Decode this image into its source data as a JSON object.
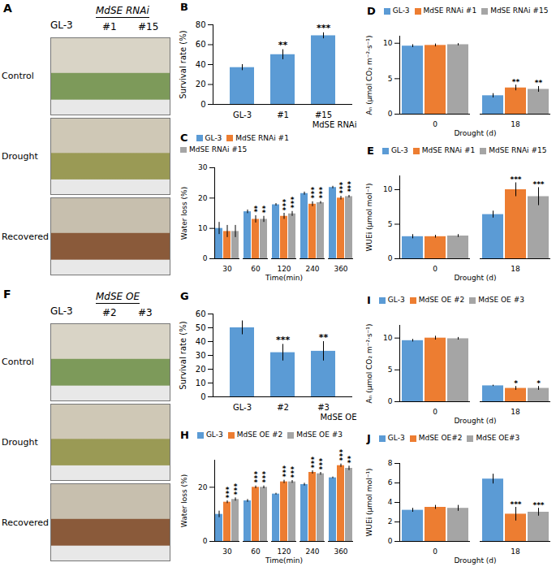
{
  "photos": [
    {
      "panel": "A",
      "columns": [
        "GL-3",
        "MdSE RNAi"
      ],
      "lines": [
        "#1",
        "#15"
      ],
      "rows": [
        "Control",
        "Drought",
        "Recovered"
      ]
    },
    {
      "panel": "F",
      "columns": [
        "GL-3",
        "MdSE OE"
      ],
      "lines": [
        "#2",
        "#3"
      ],
      "rows": [
        "Control",
        "Drought",
        "Recovered"
      ]
    }
  ],
  "chart_data": [
    {
      "panel": "B",
      "type": "bar",
      "y_label": "Survival rate (%)",
      "group_label": "MdSE RNAi",
      "categories": [
        "GL-3",
        "#1",
        "#15"
      ],
      "values": [
        37,
        50,
        69
      ],
      "errors": [
        3,
        5,
        3
      ],
      "significance": [
        null,
        "**",
        "***"
      ],
      "color": "#5b9bd5",
      "ylim": [
        0,
        80
      ],
      "yticks": [
        0,
        20,
        40,
        60,
        80
      ],
      "grid": false
    },
    {
      "panel": "C",
      "type": "bar",
      "y_label": "Water loss (%)",
      "x_label": "Time(min)",
      "categories": [
        30,
        60,
        120,
        240,
        360
      ],
      "legend": "top-left",
      "series": [
        {
          "name": "GL-3",
          "color": "#5b9bd5",
          "values": [
            10,
            15.5,
            17.8,
            21.5,
            23.5
          ],
          "errors": [
            2,
            0.6,
            0.4,
            0.5,
            0.4
          ],
          "significance": [
            null,
            null,
            null,
            null,
            null
          ]
        },
        {
          "name": "MdSE RNAi #1",
          "color": "#ed7d31",
          "values": [
            9,
            13,
            14,
            18,
            20
          ],
          "errors": [
            2,
            1.2,
            1,
            0.8,
            0.6
          ],
          "significance": [
            null,
            "**",
            "***",
            "***",
            "***"
          ]
        },
        {
          "name": "MdSE RNAi #15",
          "color": "#a5a5a5",
          "values": [
            9,
            13,
            14.8,
            18.5,
            20.5
          ],
          "errors": [
            2,
            1,
            0.8,
            0.4,
            0.4
          ],
          "significance": [
            null,
            "**",
            "***",
            "***",
            "***"
          ]
        }
      ],
      "ylim": [
        0,
        30
      ],
      "yticks": [
        0,
        10,
        20,
        30
      ],
      "grid": false
    },
    {
      "panel": "D",
      "type": "bar",
      "y_label": "Aₙ (μmol CO₂ m⁻²·s⁻¹)",
      "x_label": "Drought (d)",
      "categories": [
        0,
        18
      ],
      "legend": "top-left",
      "series": [
        {
          "name": "GL-3",
          "color": "#5b9bd5",
          "values": [
            9.6,
            2.6
          ],
          "errors": [
            0.2,
            0.3
          ],
          "significance": [
            null,
            null
          ]
        },
        {
          "name": "MdSE RNAi #1",
          "color": "#ed7d31",
          "values": [
            9.7,
            3.7
          ],
          "errors": [
            0.2,
            0.4
          ],
          "significance": [
            null,
            "**"
          ]
        },
        {
          "name": "MdSE RNAi #15",
          "color": "#a5a5a5",
          "values": [
            9.8,
            3.5
          ],
          "errors": [
            0.15,
            0.4
          ],
          "significance": [
            null,
            "**"
          ]
        }
      ],
      "ylim": [
        0,
        11
      ],
      "yticks": [
        0,
        5,
        10
      ],
      "grid": false
    },
    {
      "panel": "E",
      "type": "bar",
      "y_label": "WUEi (μmol mol⁻¹)",
      "x_label": "Drought (d)",
      "categories": [
        0,
        18
      ],
      "legend": "top-left",
      "series": [
        {
          "name": "GL-3",
          "color": "#5b9bd5",
          "values": [
            3.2,
            6.4
          ],
          "errors": [
            0.3,
            0.5
          ],
          "significance": [
            null,
            null
          ]
        },
        {
          "name": "MdSE RNAi #1",
          "color": "#ed7d31",
          "values": [
            3.2,
            10.0
          ],
          "errors": [
            0.2,
            1.0
          ],
          "significance": [
            null,
            "***"
          ]
        },
        {
          "name": "MdSE RNAi #15",
          "color": "#a5a5a5",
          "values": [
            3.3,
            9.0
          ],
          "errors": [
            0.2,
            1.3
          ],
          "significance": [
            null,
            "***"
          ]
        }
      ],
      "ylim": [
        0,
        12
      ],
      "yticks": [
        0,
        5,
        10
      ],
      "grid": false
    },
    {
      "panel": "G",
      "type": "bar",
      "y_label": "Survival rate (%)",
      "group_label": "MdSE OE",
      "categories": [
        "GL-3",
        "#2",
        "#3"
      ],
      "values": [
        50,
        32,
        33
      ],
      "errors": [
        5,
        6,
        7
      ],
      "significance": [
        null,
        "***",
        "**"
      ],
      "color": "#5b9bd5",
      "ylim": [
        0,
        60
      ],
      "yticks": [
        0,
        10,
        20,
        30,
        40,
        50,
        60
      ],
      "grid": false
    },
    {
      "panel": "H",
      "type": "bar",
      "y_label": "Water loss (%)",
      "x_label": "Time(min)",
      "categories": [
        30,
        60,
        120,
        240,
        360
      ],
      "legend": "top-left",
      "series": [
        {
          "name": "GL-3",
          "color": "#5b9bd5",
          "values": [
            10,
            15,
            17.5,
            21,
            23.5
          ],
          "errors": [
            1.2,
            0.5,
            0.3,
            0.5,
            0.3
          ],
          "significance": [
            null,
            null,
            null,
            null,
            null
          ]
        },
        {
          "name": "MdSE OE #2",
          "color": "#ed7d31",
          "values": [
            14.5,
            20,
            22,
            25.5,
            28
          ],
          "errors": [
            0.5,
            0.5,
            0.6,
            0.6,
            0.6
          ],
          "significance": [
            "***",
            "***",
            "***",
            "***",
            "***"
          ]
        },
        {
          "name": "MdSE OE #3",
          "color": "#a5a5a5",
          "values": [
            15.5,
            20,
            22,
            25,
            27
          ],
          "errors": [
            0.6,
            0.5,
            0.5,
            0.5,
            0.8
          ],
          "significance": [
            "***",
            "***",
            "***",
            "***",
            "**"
          ]
        }
      ],
      "ylim": [
        0,
        30
      ],
      "yticks": [
        0,
        20
      ],
      "grid": false
    },
    {
      "panel": "I",
      "type": "bar",
      "y_label": "Aₙ (μmol CO₂ m⁻²·s⁻¹)",
      "x_label": "Drought (d)",
      "categories": [
        0,
        18
      ],
      "legend": "top-left",
      "series": [
        {
          "name": "GL-3",
          "color": "#5b9bd5",
          "values": [
            9.6,
            2.5
          ],
          "errors": [
            0.2,
            0.1
          ],
          "significance": [
            null,
            null
          ]
        },
        {
          "name": "MdSE OE #2",
          "color": "#ed7d31",
          "values": [
            10.0,
            2.1
          ],
          "errors": [
            0.3,
            0.3
          ],
          "significance": [
            null,
            "*"
          ]
        },
        {
          "name": "MdSE OE #3",
          "color": "#a5a5a5",
          "values": [
            9.9,
            2.1
          ],
          "errors": [
            0.2,
            0.3
          ],
          "significance": [
            null,
            "*"
          ]
        }
      ],
      "ylim": [
        0,
        12
      ],
      "yticks": [
        0,
        5,
        10
      ],
      "grid": false
    },
    {
      "panel": "J",
      "type": "bar",
      "y_label": "WUEi (μmol mol⁻¹)",
      "x_label": "Drought (d)",
      "categories": [
        0,
        18
      ],
      "legend": "top-left",
      "series": [
        {
          "name": "GL-3",
          "color": "#5b9bd5",
          "values": [
            3.2,
            6.4
          ],
          "errors": [
            0.2,
            0.5
          ],
          "significance": [
            null,
            null
          ]
        },
        {
          "name": "MdSE OE#2",
          "color": "#ed7d31",
          "values": [
            3.5,
            2.8
          ],
          "errors": [
            0.2,
            0.7
          ],
          "significance": [
            null,
            "***"
          ]
        },
        {
          "name": "MdSE OE#3",
          "color": "#a5a5a5",
          "values": [
            3.4,
            3.0
          ],
          "errors": [
            0.3,
            0.4
          ],
          "significance": [
            null,
            "***"
          ]
        }
      ],
      "ylim": [
        0,
        8
      ],
      "yticks": [
        0,
        2,
        4,
        6,
        8
      ],
      "grid": false
    }
  ]
}
